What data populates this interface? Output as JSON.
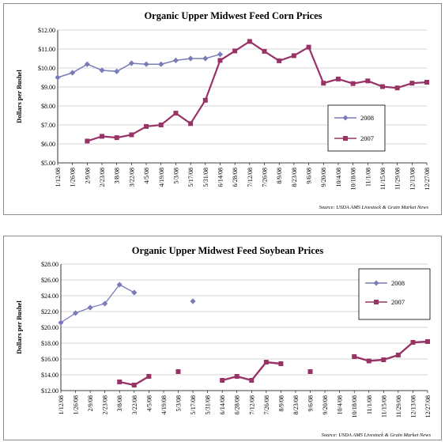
{
  "chart_data": [
    {
      "type": "line",
      "title": "Organic Upper Midwest Feed Corn Prices",
      "ylabel": "Dollars per Bushel",
      "xlabel": "",
      "source": "Source: USDA AMS Livestock & Grain Market News",
      "categories": [
        "1/12/08",
        "1/26/08",
        "2/9/08",
        "2/23/08",
        "3/8/08",
        "3/22/08",
        "4/5/08",
        "4/19/08",
        "5/3/08",
        "5/17/08",
        "5/31/08",
        "6/14/08",
        "6/28/08",
        "7/12/08",
        "7/26/08",
        "8/9/08",
        "8/23/08",
        "9/6/08",
        "9/20/08",
        "10/4/08",
        "10/18/08",
        "11/1/08",
        "11/15/08",
        "11/29/08",
        "12/13/08",
        "12/27/08"
      ],
      "yticks": [
        "$5.00",
        "$6.00",
        "$7.00",
        "$8.00",
        "$9.00",
        "$10.00",
        "$11.00",
        "$12.00"
      ],
      "ylim": [
        5,
        12
      ],
      "grid": true,
      "legend_position": "right",
      "series": [
        {
          "name": "2008",
          "color": "#7A7CB8",
          "marker": "diamond",
          "values": [
            9.5,
            9.75,
            10.2,
            9.88,
            9.82,
            10.25,
            10.2,
            10.2,
            10.4,
            10.5,
            10.5,
            10.72,
            null,
            null,
            null,
            null,
            null,
            null,
            null,
            null,
            null,
            null,
            null,
            null,
            null,
            null
          ]
        },
        {
          "name": "2007",
          "color": "#993366",
          "marker": "square",
          "values": [
            null,
            null,
            6.15,
            6.4,
            6.33,
            6.48,
            6.92,
            7.0,
            7.62,
            7.07,
            8.3,
            10.4,
            10.9,
            11.4,
            10.88,
            10.38,
            10.65,
            11.1,
            9.2,
            9.42,
            9.18,
            9.32,
            9.02,
            8.95,
            9.2,
            9.25
          ]
        }
      ]
    },
    {
      "type": "line",
      "title": "Organic Upper Midwest Feed Soybean Prices",
      "ylabel": "Dollars per Bushel",
      "xlabel": "",
      "source": "Source: USDA AMS Livestock & Grain Market News",
      "categories": [
        "1/12/08",
        "1/26/08",
        "2/9/08",
        "2/23/08",
        "3/8/08",
        "3/22/08",
        "4/5/08",
        "4/19/08",
        "5/3/08",
        "5/17/08",
        "5/31/08",
        "6/14/08",
        "6/28/08",
        "7/12/08",
        "7/26/08",
        "8/9/08",
        "8/23/08",
        "9/6/08",
        "9/20/08",
        "10/4/08",
        "10/18/08",
        "11/1/08",
        "11/15/08",
        "11/29/08",
        "12/13/08",
        "12/27/08"
      ],
      "yticks": [
        "$12.00",
        "$14.00",
        "$16.00",
        "$18.00",
        "$20.00",
        "$22.00",
        "$24.00",
        "$26.00",
        "$28.00"
      ],
      "ylim": [
        12,
        28
      ],
      "grid": true,
      "legend_position": "top-right",
      "series": [
        {
          "name": "2008",
          "color": "#7A7CB8",
          "marker": "diamond",
          "values": [
            20.6,
            21.8,
            22.5,
            23.0,
            25.4,
            24.4,
            null,
            null,
            null,
            23.3,
            null,
            null,
            null,
            null,
            null,
            null,
            null,
            null,
            null,
            null,
            null,
            null,
            null,
            null,
            null,
            null
          ]
        },
        {
          "name": "2007",
          "color": "#993366",
          "marker": "square",
          "values": [
            null,
            null,
            null,
            null,
            13.1,
            12.7,
            13.8,
            null,
            14.4,
            null,
            null,
            13.3,
            13.8,
            13.3,
            15.6,
            15.4,
            null,
            14.4,
            null,
            null,
            16.3,
            15.75,
            15.9,
            16.5,
            18.1,
            18.2
          ]
        }
      ]
    }
  ]
}
